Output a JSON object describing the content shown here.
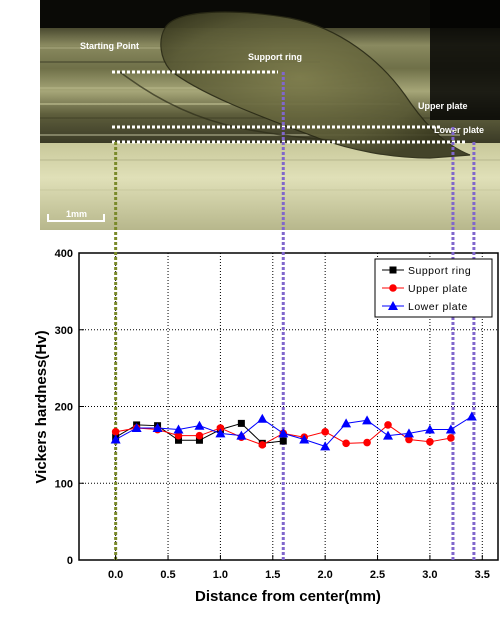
{
  "photo": {
    "labels": {
      "starting_point": "Starting Point",
      "support_ring": "Support ring",
      "upper_plate": "Upper plate",
      "lower_plate": "Lower plate"
    },
    "scale_bar": "1mm"
  },
  "chart_data": {
    "type": "line",
    "xlabel": "Distance from center(mm)",
    "ylabel": "Vickers hardness(Hv)",
    "xlim": [
      -0.35,
      3.65
    ],
    "ylim": [
      0,
      400
    ],
    "x_ticks": [
      0.0,
      0.5,
      1.0,
      1.5,
      2.0,
      2.5,
      3.0,
      3.5
    ],
    "x_tick_labels": [
      "0.0",
      "0.5",
      "1.0",
      "1.5",
      "2.0",
      "2.5",
      "3.0",
      "3.5"
    ],
    "y_ticks": [
      0,
      100,
      200,
      300,
      400
    ],
    "y_tick_labels": [
      "0",
      "100",
      "200",
      "300",
      "400"
    ],
    "grid": "dotted",
    "legend_position": "top-right",
    "series": [
      {
        "name": "Support ring",
        "color": "#000000",
        "marker": "square",
        "x": [
          0.0,
          0.2,
          0.4,
          0.6,
          0.8,
          1.0,
          1.2,
          1.4,
          1.6
        ],
        "y": [
          160,
          176,
          175,
          156,
          156,
          170,
          178,
          152,
          155
        ]
      },
      {
        "name": "Upper plate",
        "color": "#ff0000",
        "marker": "circle",
        "x": [
          0.0,
          0.2,
          0.4,
          0.6,
          0.8,
          1.0,
          1.2,
          1.4,
          1.6,
          1.8,
          2.0,
          2.2,
          2.4,
          2.6,
          2.8,
          3.0,
          3.2
        ],
        "y": [
          167,
          172,
          170,
          162,
          162,
          172,
          160,
          150,
          165,
          160,
          167,
          152,
          153,
          176,
          157,
          154,
          159
        ]
      },
      {
        "name": "Lower plate",
        "color": "#0000ff",
        "marker": "triangle",
        "x": [
          0.0,
          0.2,
          0.4,
          0.6,
          0.8,
          1.0,
          1.2,
          1.4,
          1.6,
          1.8,
          2.0,
          2.2,
          2.4,
          2.6,
          2.8,
          3.0,
          3.2,
          3.4
        ],
        "y": [
          157,
          172,
          172,
          170,
          175,
          165,
          162,
          184,
          165,
          157,
          148,
          178,
          182,
          162,
          165,
          170,
          170,
          187
        ]
      }
    ],
    "reference_lines": [
      {
        "x": 0.0,
        "color": "#7a8a2a"
      },
      {
        "x": 1.6,
        "color": "#8066cc"
      },
      {
        "x": 3.22,
        "color": "#8066cc"
      },
      {
        "x": 3.42,
        "color": "#8066cc"
      }
    ]
  }
}
